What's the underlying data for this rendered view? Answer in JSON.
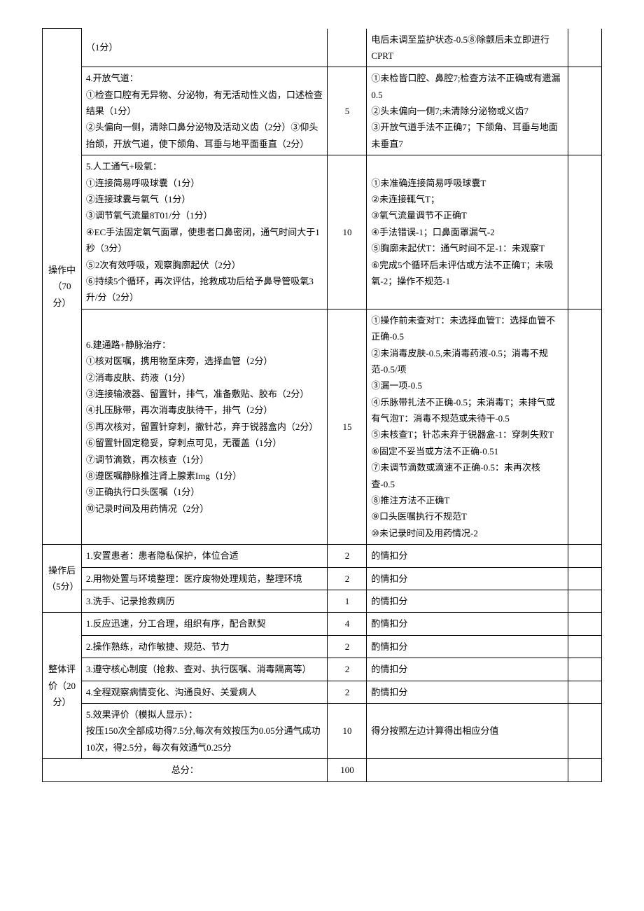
{
  "sections": {
    "op_mid": {
      "category": "操作中（70分）",
      "rows": [
        {
          "desc": "（1分）",
          "score": "",
          "deduct": "电后未调至监护状态-0.5⑧除颤后未立即进行CPRT",
          "borderTop": false
        },
        {
          "desc": "4.开放气道：\n①检查口腔有无异物、分泌物，有无活动性义齿，口述检查结果（1分）\n②头偏向一侧，清除口鼻分泌物及活动义齿（2分）③仰头抬颌，开放气道，使下颌角、耳垂与地平面垂直（2分）",
          "score": "5",
          "deduct": "①未检皆口腔、鼻腔7;检查方法不正确或有遗漏0.5\n②头未偏向一侧7;未清除分泌物或义齿7\n③开放气道手法不正确7；下颌角、耳垂与地面未垂直7"
        },
        {
          "desc": "5.人工通气+吸氧：\n①连接简易呼吸球囊（1分）\n②连接球囊与氧气（1分）\n③调节氧气流量8T01/分（1分）\n④EC手法固定氧气面罩，使患者口鼻密闭，通气时间大于1秒（3分）\n⑤2次有效呼吸，观察胸廓起伏（2分）\n⑥持续5个循环，再次评估，抢救成功后给予鼻导管吸氧3升/分（2分）",
          "score": "10",
          "deduct": "①未准确连接简易呼吸球囊T\n②未连接輒气T；\n③氧气流量调节不正确T\n④手法错误-1；口鼻面罩漏气-2\n⑤胸廓未起伏T：通气时间不足-1：未观察T\n⑥完成5个循环后未评估或方法不正确T；未吸氧-2；操作不规范-1"
        },
        {
          "desc": "6.建通路+静脉治疗：\n①核对医嘱，携用物至床旁，选择血管（2分）\n②消毒皮肤、药液（1分）\n③连接输液器、留置针，排气，准备敷贴、胶布（2分）\n④扎压脉带，再次消毒皮肤待干，排气（2分）\n⑤再次核对，留置针穿刺，撤针芯，弃于锐器盒内（2分）\n⑥留置针固定稳妥，穿刺点可见，无覆盖（1分）\n⑦调节滴数，再次核查（1分）\n⑧遵医嘱静脉推注肾上腺素Img（1分）\n⑨正确执行口头医嘱（1分）\n⑩记录时间及用药情况（2分）",
          "score": "15",
          "deduct": "①操作前未查对T：未选择血管T：选择血管不正确-0.5\n②未消毒皮肤-0.5,未消毒药液-0.5；消毒不规范-0.5/项\n③漏一项-0.5\n④乐脉带扎法不正确-0.5；未消毒T；未排气或有气泡T：消毒不规范或未待干-0.5\n⑤未核查T；针芯未弃于锐器盒-1：穿刺失败T\n⑥固定不妥当或方法不正确-0.51\n⑦未调节滴数或滴速不正确-0.5：未再次核查-0.5\n⑧推注方法不正确T\n⑨口头医嘱执行不规范T\n⑩未记录时间及用药情况-2"
        }
      ]
    },
    "op_after": {
      "category": "操作后（5分）",
      "rows": [
        {
          "desc": "1.安置患者：患者隐私保护，体位合适",
          "score": "2",
          "deduct": "的情扣分"
        },
        {
          "desc": "2.用物处置与环境整理：医疗废物处理规范，整理环境",
          "score": "2",
          "deduct": "的情扣分"
        },
        {
          "desc": "3.洗手、记录抢救病历",
          "score": "1",
          "deduct": "的情扣分"
        }
      ]
    },
    "overall": {
      "category": "整体评价（20分）",
      "rows": [
        {
          "desc": "1.反应迅速，分工合理，组织有序，配合默契",
          "score": "4",
          "deduct": "酌情扣分"
        },
        {
          "desc": "2.操作熟练，动作敏捷、规范、节力",
          "score": "2",
          "deduct": "酌情扣分"
        },
        {
          "desc": "3.遵守核心制度（抢救、查对、执行医嘱、消毒隔离等）",
          "score": "2",
          "deduct": "的情扣分"
        },
        {
          "desc": "4.全程观察病情变化、沟通良好、关爱病人",
          "score": "2",
          "deduct": "酌情扣分"
        },
        {
          "desc": "5.效果评价（模拟人显示）：\n按压150次全部成功得7.5分,每次有效按压为0.05分通气成功10次，得2.5分，每次有效通气0.25分",
          "score": "10",
          "deduct": "得分按照左边计算得出相应分值"
        }
      ]
    },
    "total": {
      "label": "总分：",
      "value": "100"
    }
  }
}
